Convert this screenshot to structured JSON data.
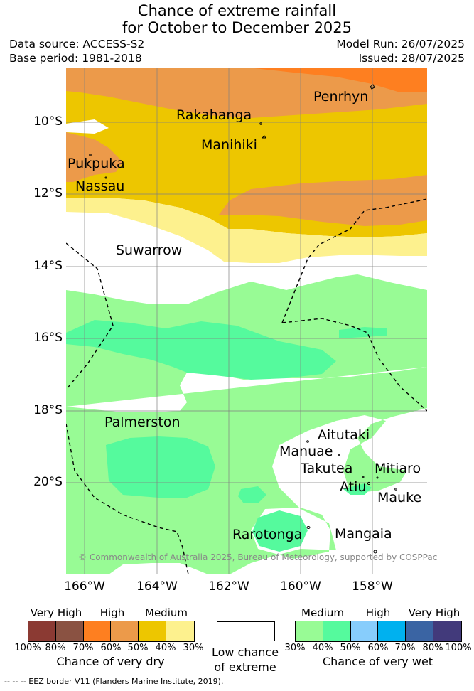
{
  "title_line1": "Chance of extreme rainfall",
  "title_line2": "for October to December 2025",
  "data_source": "Data source: ACCESS-S2",
  "base_period": "Base period: 1981-2018",
  "model_run": "Model Run: 26/07/2025",
  "issued": "Issued: 28/07/2025",
  "lat_labels": [
    "10°S",
    "12°S",
    "14°S",
    "16°S",
    "18°S",
    "20°S"
  ],
  "lon_labels": [
    "166°W",
    "164°W",
    "162°W",
    "160°W",
    "158°W"
  ],
  "places": {
    "penrhyn": "Penrhyn",
    "rakahanga": "Rakahanga",
    "manihiki": "Manihiki",
    "pukpuka": "Pukpuka",
    "nassau": "Nassau",
    "suwarrow": "Suwarrow",
    "palmerston": "Palmerston",
    "aitutaki": "Aitutaki",
    "manuae": "Manuae",
    "takutea": "Takutea",
    "mitiaro": "Mitiaro",
    "atiu": "Atiu",
    "mauke": "Mauke",
    "rarotonga": "Rarotonga",
    "mangaia": "Mangaia"
  },
  "copyright": "© Commonwealth of Australia 2025, Bureau of Meteorology, supported by COSPPac",
  "legend": {
    "dry": {
      "head_labels": [
        "Very High",
        "High",
        "Medium"
      ],
      "ticks": [
        "100%",
        "80%",
        "70%",
        "60%",
        "50%",
        "40%",
        "30%"
      ],
      "colors": [
        "#8b3a33",
        "#8a5242",
        "#fe7f20",
        "#ec9a4a",
        "#edc600",
        "#fdf18e"
      ],
      "caption": "Chance of very dry"
    },
    "low": {
      "caption_line1": "Low chance",
      "caption_line2": "of extreme",
      "color": "#ffffff"
    },
    "wet": {
      "head_labels": [
        "Medium",
        "High",
        "Very High"
      ],
      "ticks": [
        "30%",
        "40%",
        "50%",
        "60%",
        "70%",
        "80%",
        "100%"
      ],
      "colors": [
        "#98fb95",
        "#55fa9d",
        "#87cdfc",
        "#00b1ef",
        "#3a64a3",
        "#423a7b"
      ],
      "caption": "Chance of very wet"
    }
  },
  "eez_note": "-- -- -- EEZ border V11 (Flanders Marine Institute, 2019)."
}
